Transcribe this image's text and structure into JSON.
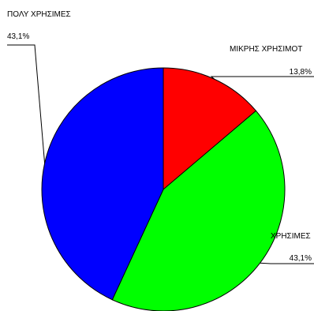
{
  "chart_data": {
    "type": "pie",
    "title": "",
    "slices": [
      {
        "label": "ΜΙΚΡΗΣ ΧΡΗΣΙΜΟΤ",
        "value": 13.8,
        "value_text": "13,8%",
        "color": "#ff0000"
      },
      {
        "label": "ΧΡΗΣΙΜΕΣ",
        "value": 43.1,
        "value_text": "43,1%",
        "color": "#00ff00"
      },
      {
        "label": "ΠΟΛΥ ΧΡΗΣΙΜΕΣ",
        "value": 43.1,
        "value_text": "43,1%",
        "color": "#0000ff"
      }
    ],
    "start_angle_deg": 0,
    "direction": "clockwise",
    "slice_border_color": "#000000",
    "leader_line_color": "#000000"
  }
}
